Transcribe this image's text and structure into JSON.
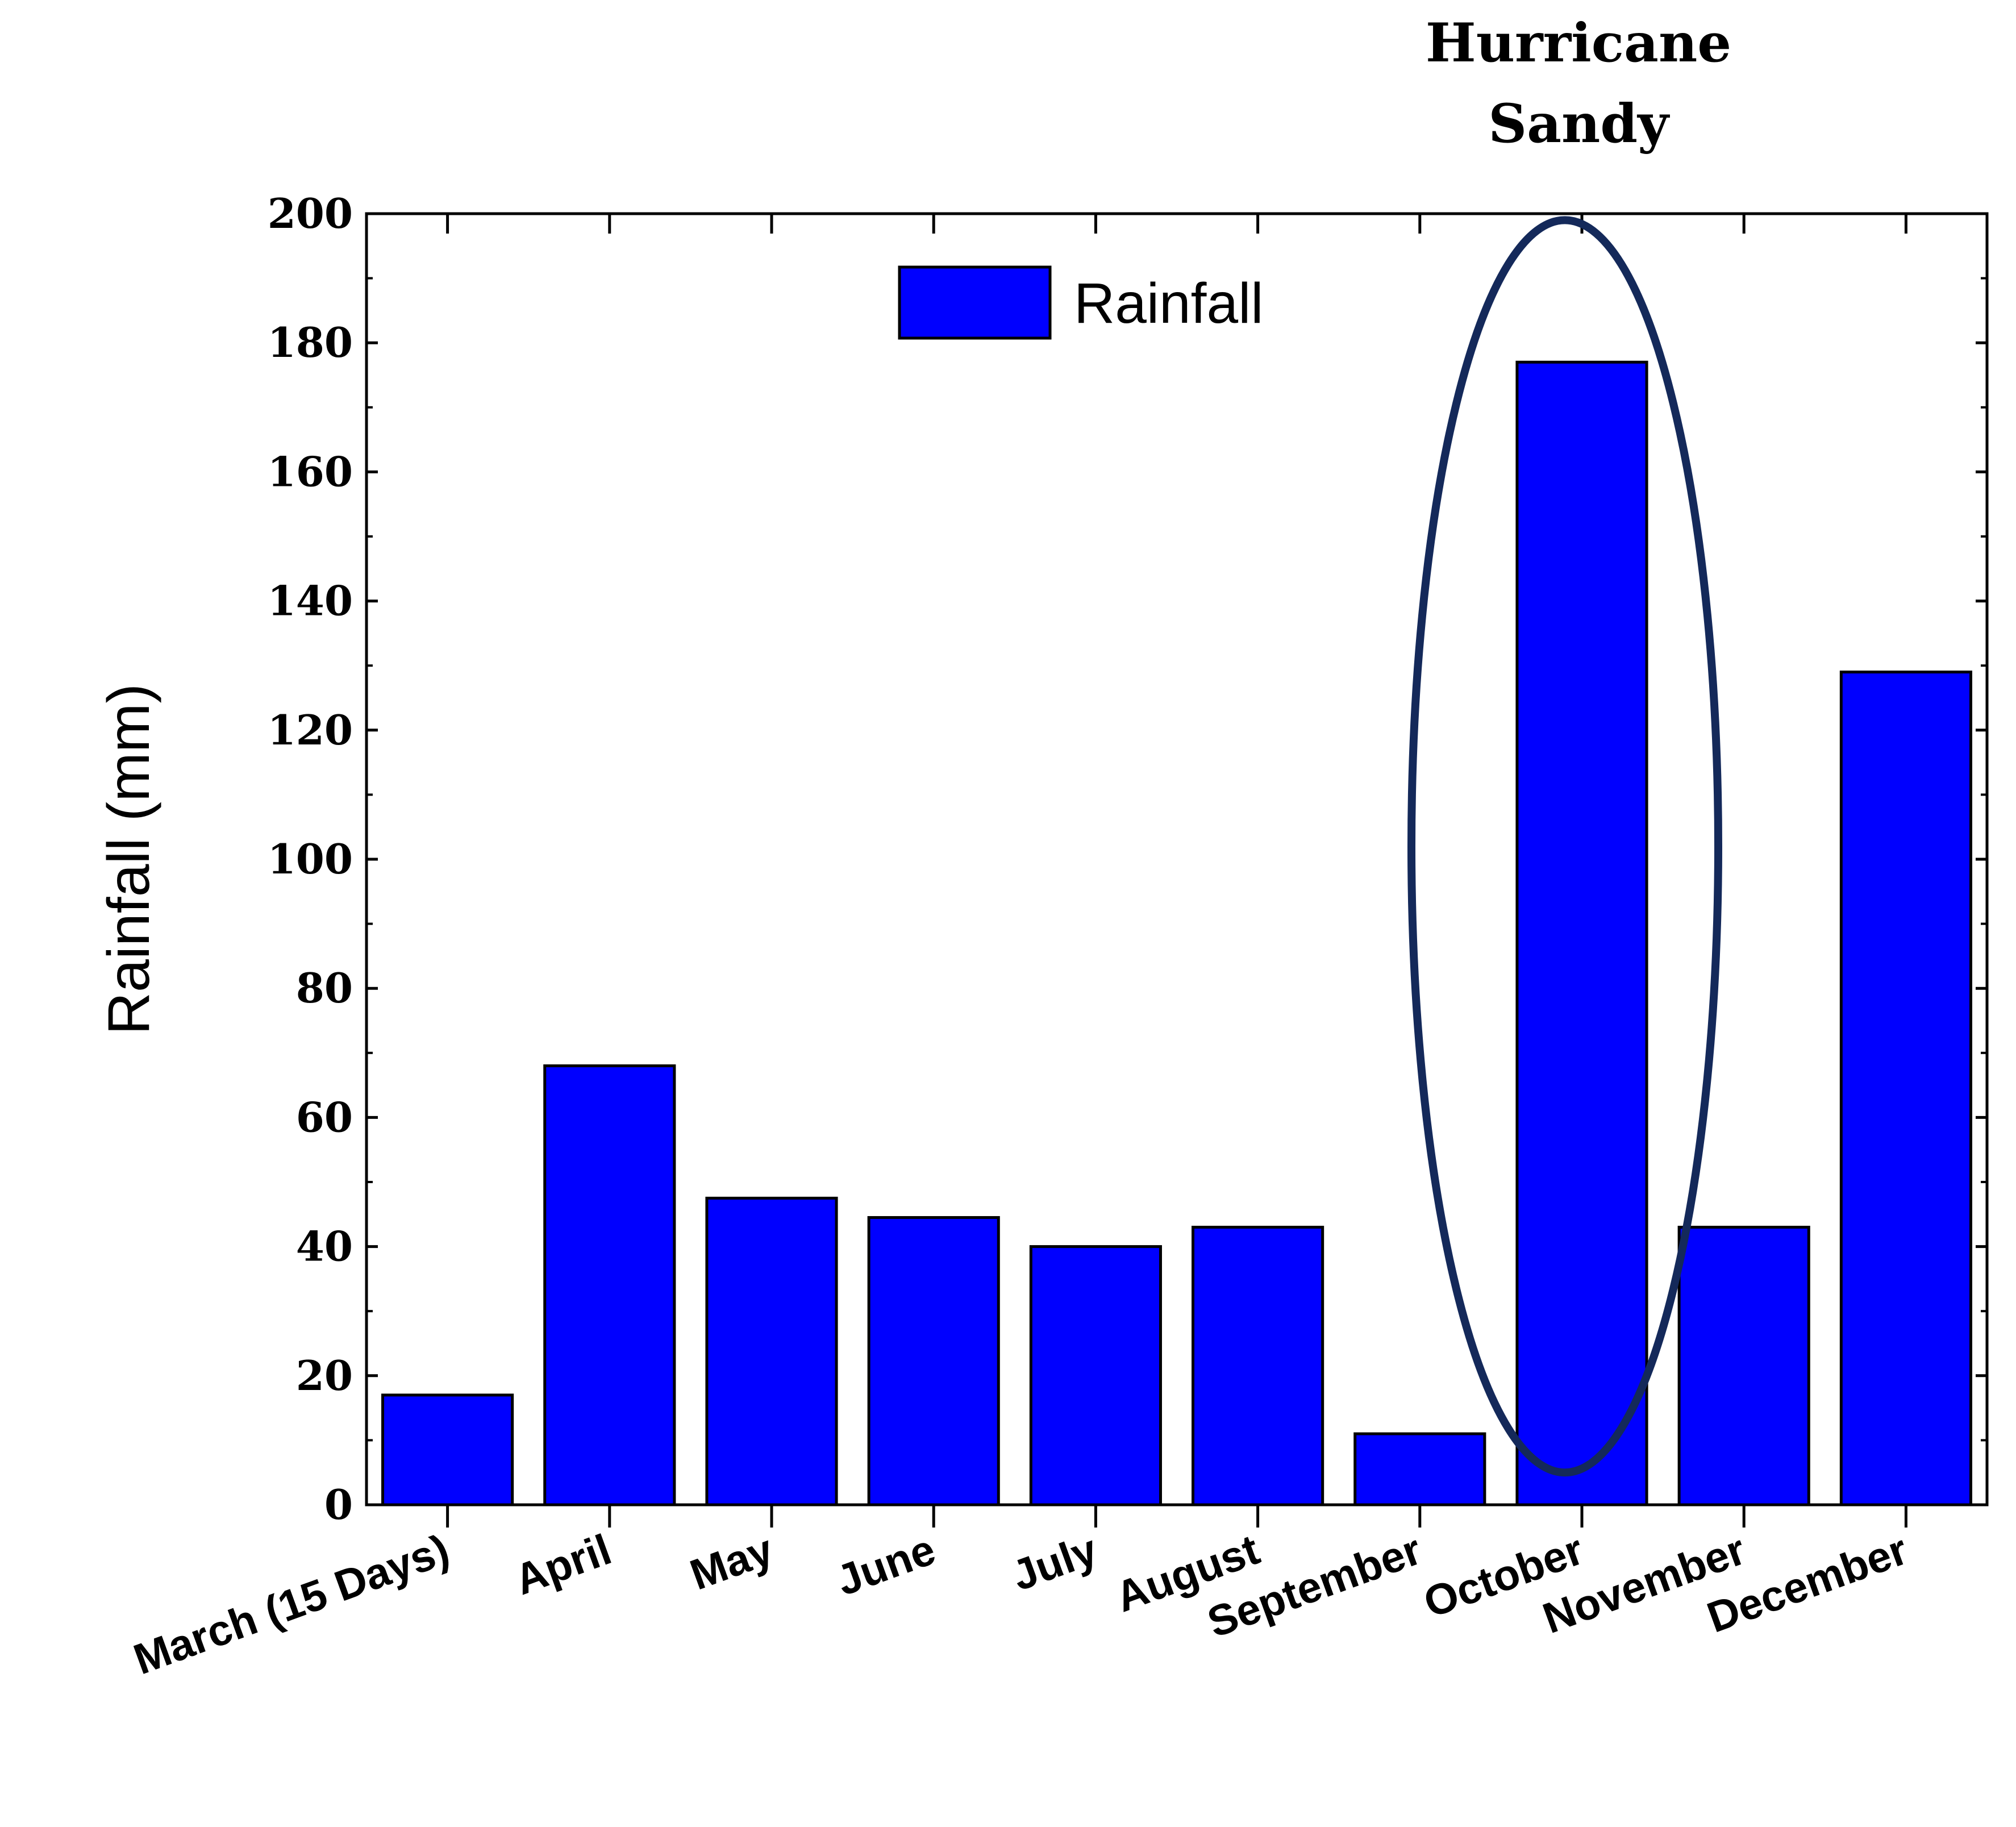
{
  "chart_data": {
    "type": "bar",
    "title": "",
    "xlabel": "",
    "ylabel": "Rainfall (mm)",
    "ylim": [
      0,
      200
    ],
    "yticks": [
      "0",
      "20",
      "40",
      "60",
      "80",
      "100",
      "120",
      "140",
      "160",
      "180",
      "200"
    ],
    "categories": [
      "March (15 Days)",
      "April",
      "May",
      "June",
      "July",
      "August",
      "September",
      "October",
      "November",
      "December"
    ],
    "series": [
      {
        "name": "Rainfall",
        "color": "#0000ff",
        "values": [
          17,
          68,
          47.5,
          44.5,
          40,
          43,
          11,
          177,
          43,
          129
        ]
      }
    ],
    "legend": {
      "label": "Rainfall",
      "placement": "top-center"
    },
    "annotation": {
      "line1": "Hurricane",
      "line2": "Sandy",
      "target_category": "October",
      "ellipse_color": "#14295a",
      "text_color": "#000000"
    }
  }
}
